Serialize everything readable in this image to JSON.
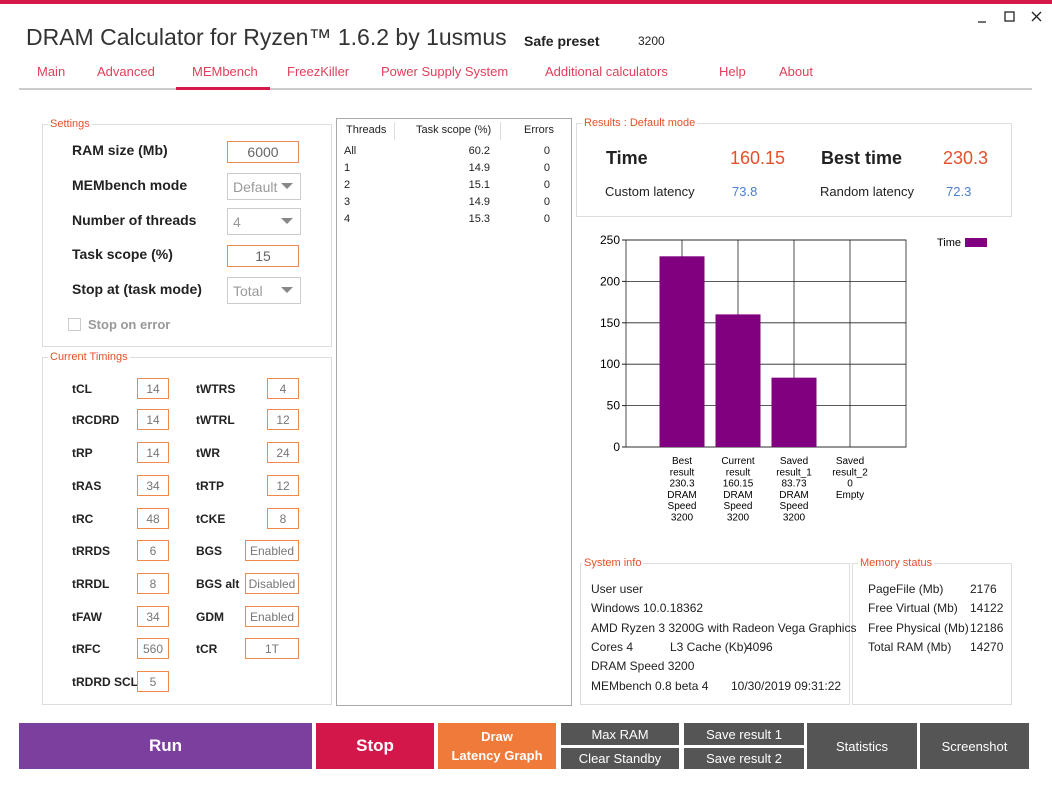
{
  "header": {
    "title": "DRAM Calculator for Ryzen™ 1.6.2 by 1usmus",
    "preset_label": "Safe preset",
    "preset_value": "3200"
  },
  "tabs": [
    "Main",
    "Advanced",
    "MEMbench",
    "FreezKiller",
    "Power Supply System",
    "Additional calculators",
    "Help",
    "About"
  ],
  "active_tab": 2,
  "settings": {
    "title": "Settings",
    "fields": [
      {
        "label": "RAM size (Mb)",
        "value": "6000",
        "kind": "input"
      },
      {
        "label": "MEMbench mode",
        "value": "Default",
        "kind": "select"
      },
      {
        "label": "Number of threads",
        "value": "4",
        "kind": "select"
      },
      {
        "label": "Task scope (%)",
        "value": "15",
        "kind": "input"
      },
      {
        "label": "Stop at (task mode)",
        "value": "Total",
        "kind": "select"
      }
    ],
    "checkbox": {
      "label": "Stop on error",
      "checked": false
    }
  },
  "timings": {
    "title": "Current Timings",
    "rows": [
      [
        {
          "label": "tCL",
          "value": "14"
        },
        {
          "label": "tWTRS",
          "value": "4"
        }
      ],
      [
        {
          "label": "tRCDRD",
          "value": "14"
        },
        {
          "label": "tWTRL",
          "value": "12"
        }
      ],
      [
        {
          "label": "tRP",
          "value": "14"
        },
        {
          "label": "tWR",
          "value": "24"
        }
      ],
      [
        {
          "label": "tRAS",
          "value": "34"
        },
        {
          "label": "tRTP",
          "value": "12"
        }
      ],
      [
        {
          "label": "tRC",
          "value": "48"
        },
        {
          "label": "tCKE",
          "value": "8"
        }
      ],
      [
        {
          "label": "tRRDS",
          "value": "6"
        },
        {
          "label": "BGS",
          "value": "Enabled"
        }
      ],
      [
        {
          "label": "tRRDL",
          "value": "8"
        },
        {
          "label": "BGS alt",
          "value": "Disabled"
        }
      ],
      [
        {
          "label": "tFAW",
          "value": "34"
        },
        {
          "label": "GDM",
          "value": "Enabled"
        }
      ],
      [
        {
          "label": "tRFC",
          "value": "560"
        },
        {
          "label": "tCR",
          "value": "1T"
        }
      ],
      [
        {
          "label": "tRDRD SCL",
          "value": "5"
        }
      ]
    ]
  },
  "threads": {
    "headers": [
      "Threads",
      "Task scope (%)",
      "Errors"
    ],
    "rows": [
      [
        "All",
        "60.2",
        "0"
      ],
      [
        "1",
        "14.9",
        "0"
      ],
      [
        "2",
        "15.1",
        "0"
      ],
      [
        "3",
        "14.9",
        "0"
      ],
      [
        "4",
        "15.3",
        "0"
      ]
    ]
  },
  "results": {
    "title": "Results : Default mode",
    "time_label": "Time",
    "time": "160.15",
    "best_label": "Best time",
    "best": "230.3",
    "custom_label": "Custom latency",
    "custom": "73.8",
    "random_label": "Random latency",
    "random": "72.3"
  },
  "chart_data": {
    "type": "bar",
    "categories": [
      [
        "Best",
        "result",
        "230.3",
        "DRAM",
        "Speed",
        "3200"
      ],
      [
        "Current",
        "result",
        "160.15",
        "DRAM",
        "Speed",
        "3200"
      ],
      [
        "Saved",
        "result_1",
        "83.73",
        "DRAM",
        "Speed",
        "3200"
      ],
      [
        "Saved",
        "result_2",
        "0",
        "Empty"
      ]
    ],
    "series": [
      {
        "name": "Time",
        "color": "#800080",
        "values": [
          230.3,
          160.15,
          83.73,
          0
        ]
      }
    ],
    "ylim": [
      0,
      250
    ],
    "yticks": [
      0,
      50,
      100,
      150,
      200,
      250
    ],
    "grid": true,
    "legend": "upper right"
  },
  "system_info": {
    "title": "System info",
    "lines": [
      [
        "User user"
      ],
      [
        "Windows 10.0.18362"
      ],
      [
        "AMD Ryzen 3 3200G with Radeon Vega Graphics"
      ],
      [
        "Cores 4",
        "L3 Cache (Kb)",
        "4096"
      ],
      [
        "DRAM Speed 3200"
      ],
      [
        "MEMbench 0.8 beta 4",
        "10/30/2019 09:31:22"
      ]
    ]
  },
  "memory_status": {
    "title": "Memory status",
    "rows": [
      [
        "PageFile (Mb)",
        "2176"
      ],
      [
        "Free Virtual (Mb)",
        "14122"
      ],
      [
        "Free Physical (Mb)",
        "12186"
      ],
      [
        "Total RAM (Mb)",
        "14270"
      ]
    ]
  },
  "buttons": {
    "run": "Run",
    "stop": "Stop",
    "draw": [
      "Draw",
      "Latency Graph"
    ],
    "max_ram": "Max RAM",
    "clear_standby": "Clear Standby",
    "save1": "Save result 1",
    "save2": "Save result 2",
    "statistics": "Statistics",
    "screenshot": "Screenshot"
  }
}
